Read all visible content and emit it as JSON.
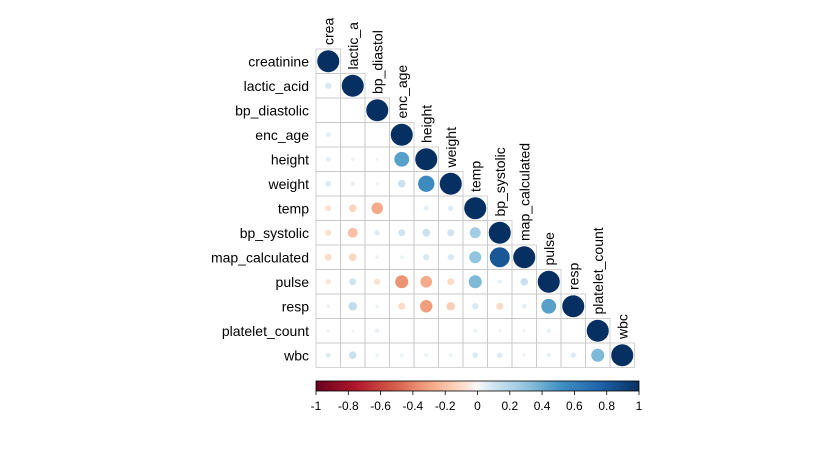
{
  "chart_data": {
    "type": "heatmap",
    "subtype": "correlation-lower-triangle-circles",
    "variables": [
      "creatinine",
      "lactic_acid",
      "bp_diastolic",
      "enc_age",
      "height",
      "weight",
      "temp",
      "bp_systolic",
      "map_calculated",
      "pulse",
      "resp",
      "platelet_count",
      "wbc"
    ],
    "diagonal_labels": [
      "crea",
      "lactic_a",
      "bp_diastol",
      "enc_age",
      "height",
      "weight",
      "temp",
      "bp_systolic",
      "map_calculated",
      "pulse",
      "resp",
      "platelet_count",
      "wbc"
    ],
    "matrix_lower": [
      [
        1
      ],
      [
        0.08,
        1
      ],
      [
        0.0,
        0.0,
        1
      ],
      [
        0.05,
        0.0,
        0.0,
        1
      ],
      [
        0.05,
        0.03,
        0.02,
        0.45,
        1
      ],
      [
        0.07,
        0.04,
        0.02,
        0.12,
        0.55,
        1
      ],
      [
        -0.08,
        -0.12,
        -0.28,
        0.0,
        0.05,
        0.06,
        1
      ],
      [
        -0.08,
        -0.2,
        0.06,
        0.1,
        0.12,
        0.1,
        0.25,
        1
      ],
      [
        -0.1,
        -0.12,
        0.03,
        0.03,
        0.08,
        0.08,
        0.3,
        0.82,
        1
      ],
      [
        -0.06,
        0.1,
        -0.08,
        -0.35,
        -0.28,
        -0.1,
        0.35,
        0.04,
        0.12,
        1
      ],
      [
        0.03,
        0.15,
        0.03,
        -0.1,
        -0.32,
        -0.15,
        0.08,
        -0.1,
        0.05,
        0.45,
        1
      ],
      [
        0.03,
        0.02,
        0.04,
        0.0,
        0.0,
        0.0,
        0.03,
        0.02,
        0.02,
        0.04,
        0.0,
        1
      ],
      [
        0.06,
        0.12,
        0.03,
        0.03,
        0.03,
        0.03,
        0.07,
        0.06,
        0.02,
        0.04,
        0.06,
        0.35,
        1
      ]
    ],
    "colorbar": {
      "range": [
        -1,
        1
      ],
      "ticks": [
        "-1",
        "-0.8",
        "-0.6",
        "-0.4",
        "-0.2",
        "0",
        "0.2",
        "0.4",
        "0.6",
        "0.8",
        "1"
      ],
      "low_color": "#67001F",
      "mid_color": "#F7F7F7",
      "high_color": "#053061"
    },
    "grid": true,
    "legend_placement": "bottom"
  }
}
